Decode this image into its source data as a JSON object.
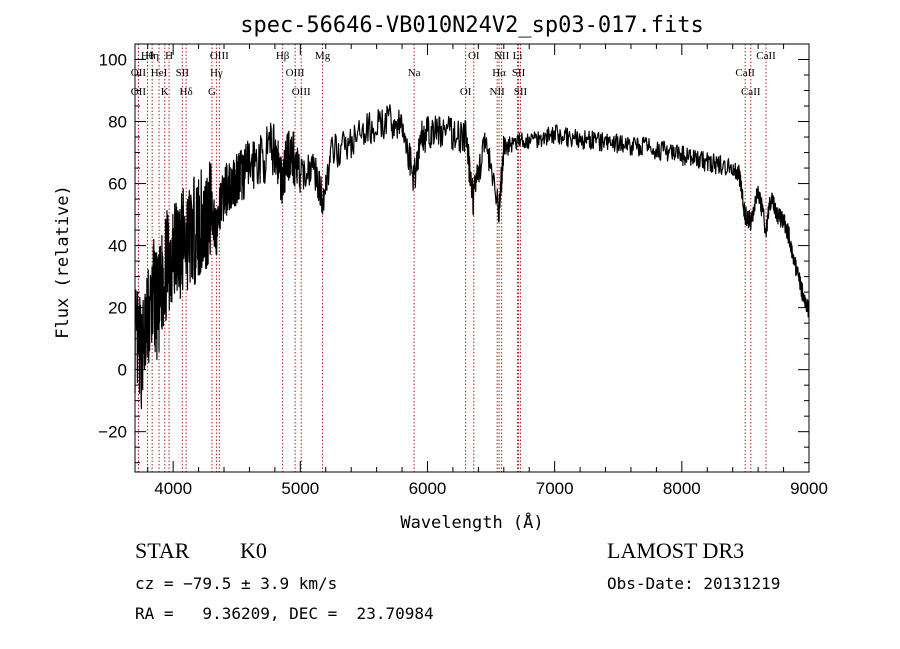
{
  "chart_data": {
    "type": "line",
    "title": "spec-56646-VB010N24V2_sp03-017.fits",
    "xlabel": "Wavelength (Å)",
    "ylabel": "Flux (relative)",
    "xlim": [
      3700,
      9000
    ],
    "ylim": [
      -33,
      105
    ],
    "x_ticks": [
      {
        "value": 4000,
        "label": "4000"
      },
      {
        "value": 5000,
        "label": "5000"
      },
      {
        "value": 6000,
        "label": "6000"
      },
      {
        "value": 7000,
        "label": "7000"
      },
      {
        "value": 8000,
        "label": "8000"
      },
      {
        "value": 9000,
        "label": "9000"
      }
    ],
    "y_ticks": [
      {
        "value": -20,
        "label": "−20"
      },
      {
        "value": 0,
        "label": "0"
      },
      {
        "value": 20,
        "label": "20"
      },
      {
        "value": 40,
        "label": "40"
      },
      {
        "value": 60,
        "label": "60"
      },
      {
        "value": 80,
        "label": "80"
      },
      {
        "value": 100,
        "label": "100"
      }
    ],
    "series": [
      {
        "name": "flux",
        "x": [
          3700,
          3750,
          3800,
          3850,
          3880,
          3920,
          3960,
          4000,
          4050,
          4100,
          4150,
          4200,
          4250,
          4300,
          4340,
          4400,
          4450,
          4500,
          4550,
          4600,
          4700,
          4800,
          4861,
          4900,
          4950,
          5000,
          5100,
          5175,
          5250,
          5400,
          5550,
          5700,
          5800,
          5895,
          5950,
          6000,
          6100,
          6200,
          6300,
          6360,
          6450,
          6563,
          6600,
          6700,
          6800,
          6900,
          7000,
          7100,
          7200,
          7300,
          7400,
          7500,
          7600,
          7700,
          7800,
          7900,
          8000,
          8100,
          8200,
          8300,
          8400,
          8450,
          8498,
          8542,
          8600,
          8662,
          8700,
          8750,
          8800,
          8850,
          8900,
          8950,
          9000
        ],
        "y": [
          10,
          5,
          15,
          25,
          18,
          30,
          35,
          38,
          40,
          42,
          44,
          46,
          48,
          52,
          45,
          57,
          60,
          62,
          63,
          66,
          68,
          72,
          60,
          70,
          68,
          62,
          66,
          55,
          70,
          73,
          78,
          80,
          78,
          62,
          75,
          76,
          77,
          76,
          75,
          55,
          74,
          50,
          72,
          73,
          74,
          75,
          76,
          75,
          74,
          74,
          73,
          73,
          72,
          72,
          71,
          70,
          69,
          68,
          67,
          66,
          65,
          63,
          50,
          48,
          58,
          45,
          55,
          50,
          48,
          42,
          32,
          25,
          18
        ]
      }
    ],
    "line_markers": [
      {
        "name": "Hθ",
        "x": 3798
      },
      {
        "name": "OII",
        "x": 3727
      },
      {
        "name": "OII",
        "x": 3727
      },
      {
        "name": "Hη",
        "x": 3835
      },
      {
        "name": "HeI",
        "x": 3889
      },
      {
        "name": "K",
        "x": 3934
      },
      {
        "name": "H",
        "x": 3968
      },
      {
        "name": "SII",
        "x": 4072
      },
      {
        "name": "Hδ",
        "x": 4102
      },
      {
        "name": "OIII",
        "x": 4363
      },
      {
        "name": "Hγ",
        "x": 4340
      },
      {
        "name": "G",
        "x": 4305
      },
      {
        "name": "Hβ",
        "x": 4861
      },
      {
        "name": "OIII",
        "x": 4959
      },
      {
        "name": "OIII",
        "x": 5007
      },
      {
        "name": "Mg",
        "x": 5175
      },
      {
        "name": "Na",
        "x": 5895
      },
      {
        "name": "OI",
        "x": 6300
      },
      {
        "name": "OI",
        "x": 6364
      },
      {
        "name": "Hα",
        "x": 6563
      },
      {
        "name": "NII",
        "x": 6548
      },
      {
        "name": "NII",
        "x": 6583
      },
      {
        "name": "SII",
        "x": 6716
      },
      {
        "name": "SII",
        "x": 6731
      },
      {
        "name": "Li",
        "x": 6708
      },
      {
        "name": "CaII",
        "x": 8498
      },
      {
        "name": "CaII",
        "x": 8542
      },
      {
        "name": "CaII",
        "x": 8662
      }
    ]
  },
  "info": {
    "class_label": "STAR",
    "subclass": "K0",
    "survey": "LAMOST DR3",
    "redshift_text": "cz = −79.5 ± 3.9 km/s",
    "obs_date_text": "Obs-Date: 20131219",
    "coords_text": "RA =   9.36209, DEC =  23.70984"
  },
  "colors": {
    "spectrum": "#000000",
    "marker": "#b02020",
    "axis": "#000000"
  }
}
